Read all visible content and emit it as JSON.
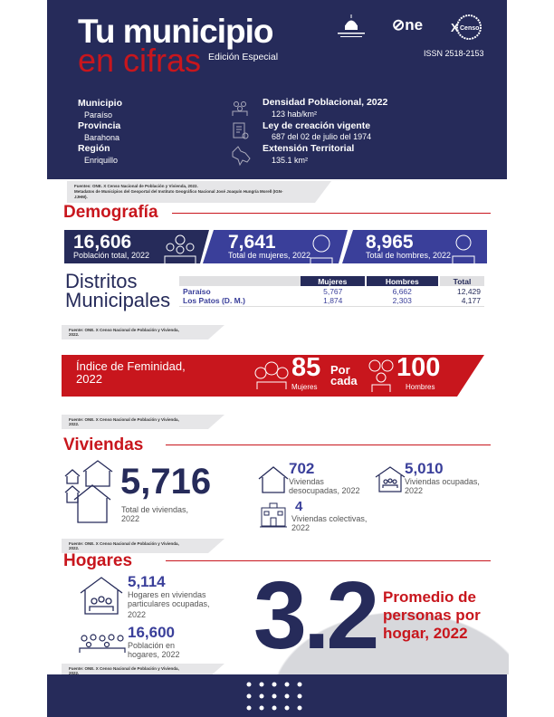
{
  "header": {
    "title_line1": "Tu municipio",
    "title_line2": "en cifras",
    "edition": "Edición Especial",
    "issn": "ISSN  2518-2153",
    "logos": [
      "Ministerio de Economía, Planificación y Desarrollo",
      "ONE",
      "X Censo"
    ],
    "left": [
      {
        "label": "Municipio",
        "value": "Paraíso"
      },
      {
        "label": "Provincia",
        "value": "Barahona"
      },
      {
        "label": "Región",
        "value": "Enriquillo"
      }
    ],
    "right": [
      {
        "label": "Densidad Poblacional, 2022",
        "value": "123 hab/km²",
        "icon": "people-icon"
      },
      {
        "label": "Ley de creación vigente",
        "value": "687 del 02 de julio del 1974",
        "icon": "document-icon"
      },
      {
        "label": "Extensión Territorial",
        "value": "135.1 km²",
        "icon": "map-icon"
      }
    ],
    "source_line1": "Fuentes: ONE. X Censo Nacional de Población y Vivienda, 2022.",
    "source_line2": "Metadatos de Municipios del Geoportal del Instituto Geográfico Nacional José Joaquín Hungría Morell (IGN-JJHM)."
  },
  "demografia": {
    "title": "Demografía",
    "stats": [
      {
        "value": "16,606",
        "label": "Población total, 2022"
      },
      {
        "value": "7,641",
        "label": "Total de mujeres, 2022"
      },
      {
        "value": "8,965",
        "label": "Total de hombres, 2022"
      }
    ],
    "distritos_title1": "Distritos",
    "distritos_title2": "Municipales",
    "table": {
      "headers": [
        "Mujeres",
        "Hombres",
        "Total"
      ],
      "rows": [
        {
          "name": "Paraíso",
          "mujeres": "5,767",
          "hombres": "6,662",
          "total": "12,429"
        },
        {
          "name": "Los Patos (D. M.)",
          "mujeres": "1,874",
          "hombres": "2,303",
          "total": "4,177"
        }
      ]
    },
    "source": "Fuente: ONE. X Censo Nacional de Población y Vivienda, 2022."
  },
  "feminidad": {
    "label1": "Índice de Feminidad,",
    "label2": "2022",
    "women": "85",
    "women_label": "Mujeres",
    "por": "Por",
    "cada": "cada",
    "men": "100",
    "men_label": "Hombres",
    "source": "Fuente: ONE. X Censo Nacional de Población y Vivienda, 2022."
  },
  "viviendas": {
    "title": "Viviendas",
    "total": "5,716",
    "total_label1": "Total de viviendas,",
    "total_label2": "2022",
    "desocupadas": "702",
    "desocupadas_label1": "Viviendas",
    "desocupadas_label2": "desocupadas, 2022",
    "ocupadas": "5,010",
    "ocupadas_label1": "Viviendas ocupadas,",
    "ocupadas_label2": "2022",
    "colectivas": "4",
    "colectivas_label1": "Viviendas colectivas,",
    "colectivas_label2": "2022",
    "source": "Fuente: ONE. X Censo Nacional de Población y Vivienda, 2022."
  },
  "hogares": {
    "title": "Hogares",
    "hogares": "5,114",
    "hogares_label1": "Hogares en viviendas",
    "hogares_label2": "particulares ocupadas,",
    "hogares_label3": "2022",
    "poblacion": "16,600",
    "poblacion_label1": "Población en",
    "poblacion_label2": "hogares, 2022",
    "promedio": "3.2",
    "promedio_label1": "Promedio de",
    "promedio_label2": "personas por",
    "promedio_label3": "hogar, 2022",
    "source": "Fuente: ONE. X Censo Nacional de Población y Vivienda, 2022."
  },
  "colors": {
    "navy": "#262b5a",
    "blue": "#3a3f9a",
    "red": "#c8161d"
  }
}
